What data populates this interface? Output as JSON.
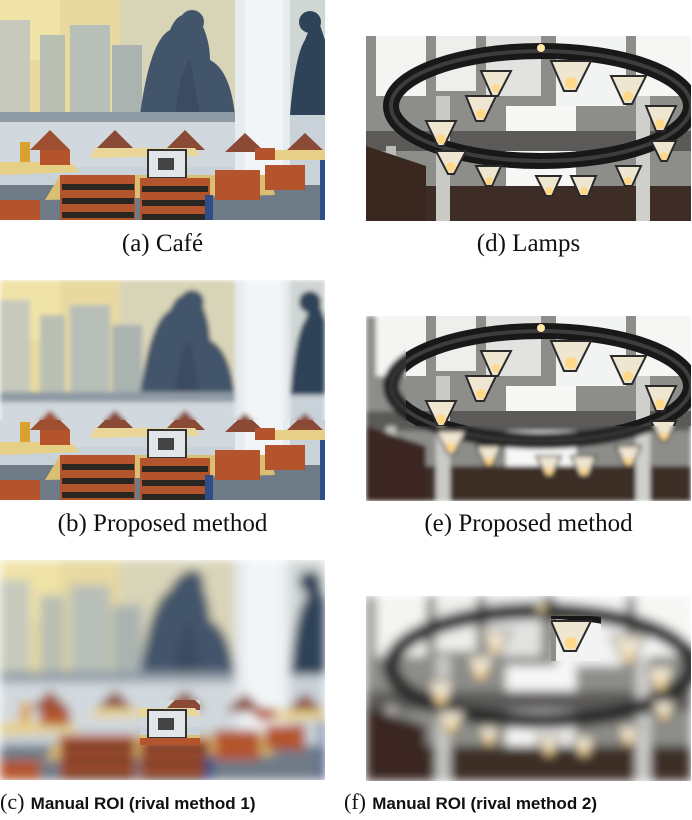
{
  "panels": [
    {
      "id": "a",
      "prefix": "(a)",
      "label": "Café",
      "scene": "cafe",
      "blur": "none"
    },
    {
      "id": "b",
      "prefix": "(b)",
      "label": "Proposed method",
      "scene": "cafe",
      "blur": "partial"
    },
    {
      "id": "c",
      "prefix": "(c)",
      "label": "Manual ROI (rival method 1)",
      "scene": "cafe",
      "blur": "heavy"
    },
    {
      "id": "d",
      "prefix": "(d)",
      "label": "Lamps",
      "scene": "lamps",
      "blur": "none"
    },
    {
      "id": "e",
      "prefix": "(e)",
      "label": "Proposed method",
      "scene": "lamps",
      "blur": "partial"
    },
    {
      "id": "f",
      "prefix": "(f)",
      "label": "Manual ROI (rival method 2)",
      "scene": "lamps",
      "blur": "heavy"
    }
  ]
}
